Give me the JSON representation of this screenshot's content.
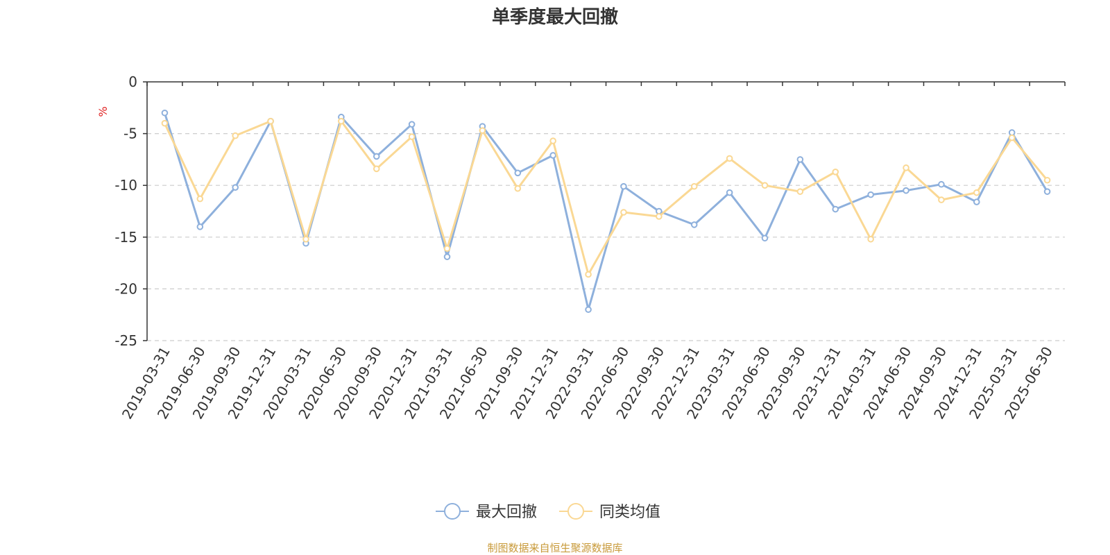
{
  "chart_data": {
    "type": "line",
    "title": "单季度最大回撤",
    "ylabel": "%",
    "xlabel": "",
    "categories": [
      "2019-03-31",
      "2019-06-30",
      "2019-09-30",
      "2019-12-31",
      "2020-03-31",
      "2020-06-30",
      "2020-09-30",
      "2020-12-31",
      "2021-03-31",
      "2021-06-30",
      "2021-09-30",
      "2021-12-31",
      "2022-03-31",
      "2022-06-30",
      "2022-09-30",
      "2022-12-31",
      "2023-03-31",
      "2023-06-30",
      "2023-09-30",
      "2023-12-31",
      "2024-03-31",
      "2024-06-30",
      "2024-09-30",
      "2024-12-31",
      "2025-03-31",
      "2025-06-30"
    ],
    "series": [
      {
        "name": "最大回撤",
        "color": "#8eb0dc",
        "values": [
          -3.0,
          -14.0,
          -10.2,
          -3.8,
          -15.6,
          -3.4,
          -7.2,
          -4.1,
          -16.9,
          -4.3,
          -8.8,
          -7.1,
          -22.0,
          -10.1,
          -12.5,
          -13.8,
          -10.7,
          -15.1,
          -7.5,
          -12.3,
          -10.9,
          -10.5,
          -9.9,
          -11.6,
          -4.9,
          -10.6
        ]
      },
      {
        "name": "同类均值",
        "color": "#fad894",
        "values": [
          -4.0,
          -11.3,
          -5.2,
          -3.8,
          -15.2,
          -3.8,
          -8.4,
          -5.3,
          -16.1,
          -4.7,
          -10.3,
          -5.7,
          -18.6,
          -12.6,
          -13.0,
          -10.1,
          -7.4,
          -10.0,
          -10.6,
          -8.7,
          -15.2,
          -8.3,
          -11.4,
          -10.7,
          -5.4,
          -9.5
        ]
      }
    ],
    "ylim": [
      -25,
      0
    ],
    "yticks": [
      0,
      -5,
      -10,
      -15,
      -20,
      -25
    ],
    "grid": "horizontal-dashed",
    "legend": "bottom-center",
    "source": "制图数据来自恒生聚源数据库"
  }
}
